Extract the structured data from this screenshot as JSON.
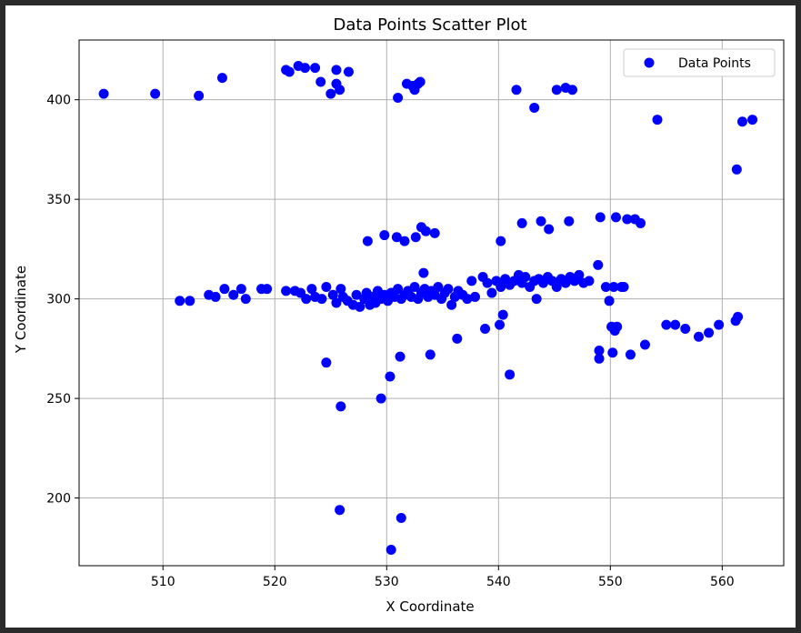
{
  "chart_data": {
    "type": "scatter",
    "title": "Data Points Scatter Plot",
    "xlabel": "X Coordinate",
    "ylabel": "Y Coordinate",
    "xlim": [
      502.5,
      565.5
    ],
    "ylim": [
      166,
      430
    ],
    "x_ticks": [
      510,
      520,
      530,
      540,
      550,
      560
    ],
    "y_ticks": [
      200,
      250,
      300,
      350,
      400
    ],
    "grid": true,
    "legend_position": "top-right",
    "series": [
      {
        "name": "Data Points",
        "color": "#0000ff",
        "marker": "circle",
        "points": [
          [
            504.7,
            403
          ],
          [
            509.3,
            403
          ],
          [
            513.2,
            402
          ],
          [
            515.3,
            411
          ],
          [
            521,
            415
          ],
          [
            521.3,
            414
          ],
          [
            522.1,
            417
          ],
          [
            522.7,
            416
          ],
          [
            523.6,
            416
          ],
          [
            524.1,
            409
          ],
          [
            525,
            403
          ],
          [
            525.5,
            415
          ],
          [
            525.5,
            408
          ],
          [
            525.8,
            405
          ],
          [
            526.6,
            414
          ],
          [
            531,
            401
          ],
          [
            531.8,
            408
          ],
          [
            532.3,
            407
          ],
          [
            532.5,
            405
          ],
          [
            532.8,
            408
          ],
          [
            533,
            409
          ],
          [
            541.6,
            405
          ],
          [
            543.2,
            396
          ],
          [
            545.2,
            405
          ],
          [
            546,
            406
          ],
          [
            546.6,
            405
          ],
          [
            554.2,
            390
          ],
          [
            561.3,
            365
          ],
          [
            561.8,
            389
          ],
          [
            562.7,
            390
          ],
          [
            528.3,
            329
          ],
          [
            529.8,
            332
          ],
          [
            530.9,
            331
          ],
          [
            531.6,
            329
          ],
          [
            532.6,
            331
          ],
          [
            533.1,
            336
          ],
          [
            533.5,
            334
          ],
          [
            534.3,
            333
          ],
          [
            533.3,
            313
          ],
          [
            540.2,
            329
          ],
          [
            542.1,
            338
          ],
          [
            543.8,
            339
          ],
          [
            544.5,
            335
          ],
          [
            546.3,
            339
          ],
          [
            549.1,
            341
          ],
          [
            550.5,
            341
          ],
          [
            551.5,
            340
          ],
          [
            552.2,
            340
          ],
          [
            552.7,
            338
          ],
          [
            548.9,
            317
          ],
          [
            549.6,
            306
          ],
          [
            550.3,
            306
          ],
          [
            551,
            306
          ],
          [
            551.2,
            306
          ],
          [
            543.4,
            300
          ],
          [
            549.9,
            299
          ],
          [
            511.5,
            299
          ],
          [
            512.4,
            299
          ],
          [
            514.1,
            302
          ],
          [
            514.7,
            301
          ],
          [
            515.5,
            305
          ],
          [
            516.3,
            302
          ],
          [
            517,
            305
          ],
          [
            517.4,
            300
          ],
          [
            518.8,
            305
          ],
          [
            519.3,
            305
          ],
          [
            521,
            304
          ],
          [
            521.8,
            304
          ],
          [
            522.3,
            303
          ],
          [
            522.8,
            300
          ],
          [
            523.3,
            305
          ],
          [
            523.6,
            301
          ],
          [
            524.2,
            300
          ],
          [
            524.6,
            306
          ],
          [
            525.2,
            302
          ],
          [
            525.5,
            298
          ],
          [
            525.9,
            305
          ],
          [
            526.1,
            301
          ],
          [
            526.5,
            299
          ],
          [
            527,
            297
          ],
          [
            527.3,
            302
          ],
          [
            527.6,
            296
          ],
          [
            528,
            300
          ],
          [
            528.2,
            303
          ],
          [
            528.5,
            297
          ],
          [
            528.7,
            301
          ],
          [
            529,
            298
          ],
          [
            529.2,
            304
          ],
          [
            529.5,
            300
          ],
          [
            529.8,
            302
          ],
          [
            530.1,
            299
          ],
          [
            530.4,
            303
          ],
          [
            530.7,
            301
          ],
          [
            531,
            305
          ],
          [
            531.3,
            300
          ],
          [
            531.6,
            302
          ],
          [
            531.9,
            304
          ],
          [
            532.2,
            301
          ],
          [
            532.5,
            306
          ],
          [
            532.8,
            300
          ],
          [
            533.1,
            303
          ],
          [
            533.4,
            305
          ],
          [
            533.7,
            301
          ],
          [
            534,
            304
          ],
          [
            534.3,
            302
          ],
          [
            534.6,
            306
          ],
          [
            534.9,
            300
          ],
          [
            535.2,
            303
          ],
          [
            535.5,
            305
          ],
          [
            535.8,
            297
          ],
          [
            536.1,
            301
          ],
          [
            536.4,
            304
          ],
          [
            536.8,
            302
          ],
          [
            537.2,
            300
          ],
          [
            537.6,
            309
          ],
          [
            537.9,
            301
          ],
          [
            538.6,
            311
          ],
          [
            539,
            308
          ],
          [
            539.4,
            303
          ],
          [
            539.8,
            309
          ],
          [
            540.2,
            306
          ],
          [
            540.6,
            310
          ],
          [
            541,
            307
          ],
          [
            541.4,
            309
          ],
          [
            541.8,
            312
          ],
          [
            542.1,
            308
          ],
          [
            542.4,
            311
          ],
          [
            542.8,
            306
          ],
          [
            543.2,
            309
          ],
          [
            543.6,
            310
          ],
          [
            544,
            308
          ],
          [
            544.4,
            311
          ],
          [
            544.8,
            309
          ],
          [
            545.2,
            306
          ],
          [
            545.6,
            310
          ],
          [
            546,
            308
          ],
          [
            546.4,
            311
          ],
          [
            546.8,
            309
          ],
          [
            547.2,
            312
          ],
          [
            547.6,
            308
          ],
          [
            548.1,
            309
          ],
          [
            538.8,
            285
          ],
          [
            540.1,
            287
          ],
          [
            540.4,
            292
          ],
          [
            536.3,
            280
          ],
          [
            550.1,
            286
          ],
          [
            550.4,
            284
          ],
          [
            550.6,
            286
          ],
          [
            549,
            274
          ],
          [
            549,
            270
          ],
          [
            550.2,
            273
          ],
          [
            551.8,
            272
          ],
          [
            553.1,
            277
          ],
          [
            555,
            287
          ],
          [
            555.8,
            287
          ],
          [
            556.7,
            285
          ],
          [
            557.9,
            281
          ],
          [
            558.8,
            283
          ],
          [
            559.7,
            287
          ],
          [
            561.2,
            289
          ],
          [
            561.4,
            291
          ],
          [
            524.6,
            268
          ],
          [
            531.2,
            271
          ],
          [
            533.9,
            272
          ],
          [
            530.3,
            261
          ],
          [
            529.5,
            250
          ],
          [
            525.9,
            246
          ],
          [
            541,
            262
          ],
          [
            525.8,
            194
          ],
          [
            531.3,
            190
          ],
          [
            530.4,
            174
          ]
        ]
      }
    ]
  }
}
